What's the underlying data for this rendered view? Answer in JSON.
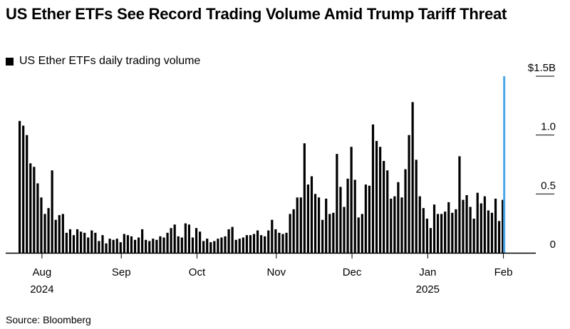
{
  "title": "US Ether ETFs See Record Trading Volume Amid Trump Tariff Threat",
  "legend_label": "US Ether ETFs daily trading volume",
  "source": "Source: Bloomberg",
  "colors": {
    "bars": "#000000",
    "highlight_line": "#4da6e8",
    "axis": "#000000"
  },
  "chart_data": {
    "type": "bar",
    "ylabel": "",
    "xlabel": "",
    "ylim": [
      0,
      1.5
    ],
    "y_ticks": [
      {
        "value": 1.5,
        "label": "$1.5B"
      },
      {
        "value": 1.0,
        "label": "1.0"
      },
      {
        "value": 0.5,
        "label": "0.5"
      },
      {
        "value": 0,
        "label": "0"
      }
    ],
    "x_ticks": [
      {
        "label": "Aug",
        "sublabel": "2024",
        "index": 6.5
      },
      {
        "label": "Sep",
        "sublabel": "",
        "index": 28.5
      },
      {
        "label": "Oct",
        "sublabel": "",
        "index": 49.5
      },
      {
        "label": "Nov",
        "sublabel": "",
        "index": 71.5
      },
      {
        "label": "Dec",
        "sublabel": "",
        "index": 92.5
      },
      {
        "label": "Jan",
        "sublabel": "2025",
        "index": 113.5
      },
      {
        "label": "Feb",
        "sublabel": "",
        "index": 134.5
      }
    ],
    "legend_position": "top-left",
    "highlight": {
      "index": 134,
      "value": 1.5
    },
    "series": [
      {
        "values": [
          1.12,
          1.08,
          1.0,
          0.76,
          0.73,
          0.59,
          0.47,
          0.33,
          0.38,
          0.7,
          0.28,
          0.32,
          0.33,
          0.17,
          0.2,
          0.15,
          0.2,
          0.18,
          0.17,
          0.13,
          0.19,
          0.17,
          0.1,
          0.15,
          0.08,
          0.12,
          0.11,
          0.12,
          0.09,
          0.16,
          0.15,
          0.14,
          0.11,
          0.13,
          0.2,
          0.11,
          0.1,
          0.12,
          0.11,
          0.14,
          0.13,
          0.17,
          0.21,
          0.24,
          0.14,
          0.13,
          0.25,
          0.24,
          0.13,
          0.21,
          0.18,
          0.1,
          0.12,
          0.09,
          0.1,
          0.12,
          0.13,
          0.14,
          0.2,
          0.22,
          0.11,
          0.12,
          0.13,
          0.15,
          0.15,
          0.16,
          0.19,
          0.15,
          0.14,
          0.19,
          0.28,
          0.2,
          0.17,
          0.16,
          0.17,
          0.33,
          0.37,
          0.47,
          0.47,
          0.93,
          0.58,
          0.65,
          0.5,
          0.47,
          0.28,
          0.46,
          0.33,
          0.34,
          0.84,
          0.56,
          0.39,
          0.63,
          0.9,
          0.62,
          0.3,
          0.33,
          0.58,
          0.57,
          1.09,
          0.95,
          0.9,
          0.78,
          0.7,
          0.46,
          0.48,
          0.6,
          0.47,
          0.71,
          1.0,
          1.28,
          0.79,
          0.48,
          0.38,
          0.29,
          0.21,
          0.41,
          0.33,
          0.33,
          0.35,
          0.43,
          0.34,
          0.37,
          0.82,
          0.45,
          0.49,
          0.39,
          0.29,
          0.51,
          0.42,
          0.48,
          0.36,
          0.34,
          0.46,
          0.27,
          0.45
        ]
      }
    ]
  }
}
